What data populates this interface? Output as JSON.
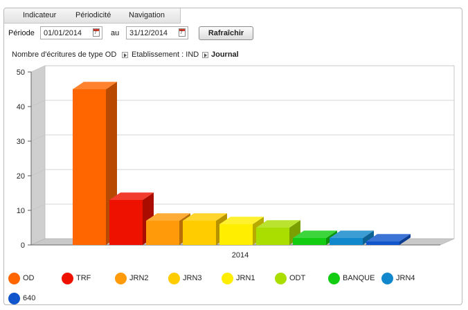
{
  "menu": {
    "items": [
      "Indicateur",
      "Périodicité",
      "Navigation"
    ]
  },
  "period": {
    "label": "Période",
    "from": "01/01/2014",
    "sep": "au",
    "to": "31/12/2014",
    "calendar_icon_text": "7",
    "refresh_label": "Rafraîchir"
  },
  "breadcrumb": {
    "part1": "Nombre d'écritures de type OD",
    "part2": "Etablissement : IND",
    "part3": "Journal"
  },
  "chart_data": {
    "type": "bar",
    "categories": [
      "2014"
    ],
    "ylim": [
      0,
      50
    ],
    "yticks": [
      0,
      10,
      20,
      30,
      40,
      50
    ],
    "series": [
      {
        "name": "OD",
        "values": [
          45
        ],
        "color": "#ff6600"
      },
      {
        "name": "TRF",
        "values": [
          13
        ],
        "color": "#ee1100"
      },
      {
        "name": "JRN2",
        "values": [
          7
        ],
        "color": "#ff9a0a"
      },
      {
        "name": "JRN3",
        "values": [
          7
        ],
        "color": "#ffcc00"
      },
      {
        "name": "JRN1",
        "values": [
          6
        ],
        "color": "#ffee00"
      },
      {
        "name": "ODT",
        "values": [
          5
        ],
        "color": "#aadd00"
      },
      {
        "name": "BANQUE",
        "values": [
          2
        ],
        "color": "#11cc11"
      },
      {
        "name": "JRN4",
        "values": [
          2
        ],
        "color": "#1188cc"
      },
      {
        "name": "640",
        "values": [
          1
        ],
        "color": "#1155cc"
      }
    ],
    "grid": true,
    "legend": "bottom"
  }
}
